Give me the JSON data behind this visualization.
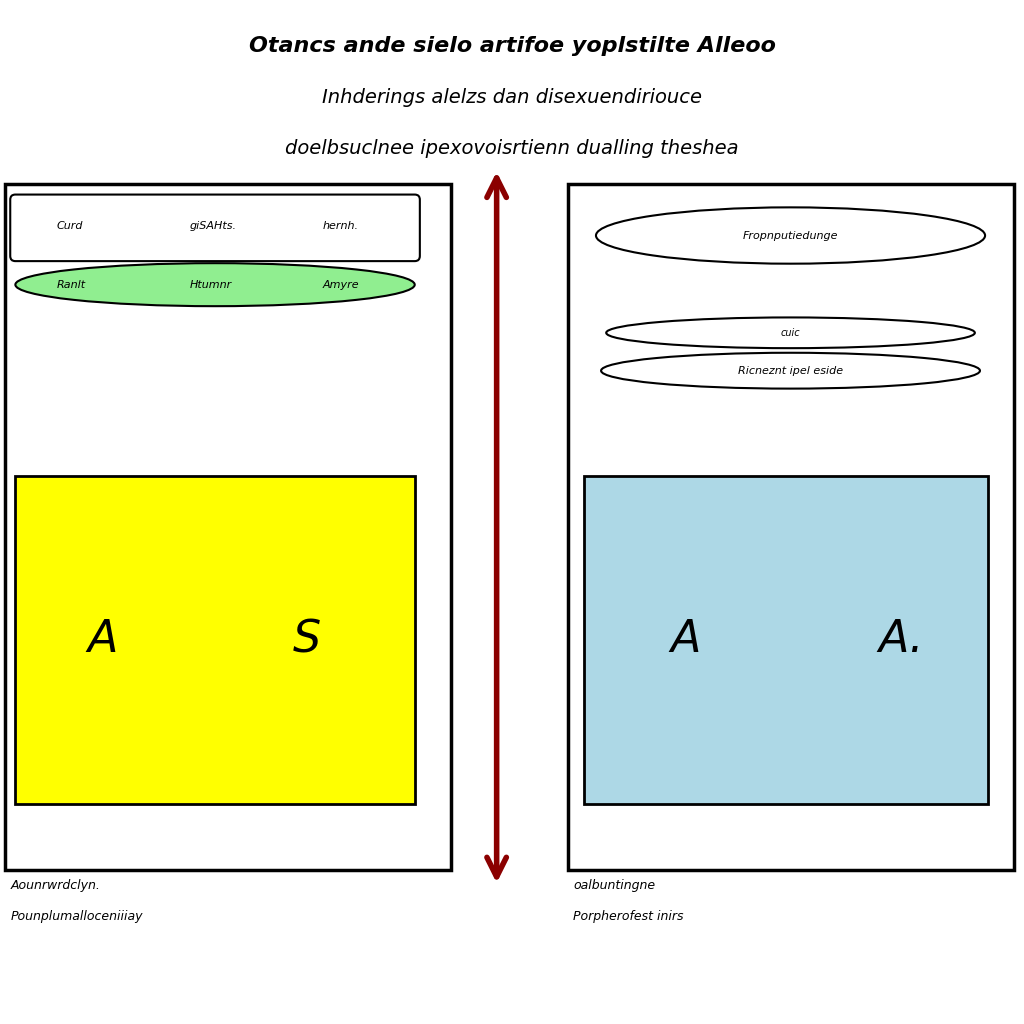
{
  "title_line1": "Otancs ande sielo artifoe yoplstilte Alleoo",
  "title_line2": "Inhderings alelzs dan disexuendiriouce",
  "title_line3": "doelbsuclnee ipexovoisrtienn dualling theshea",
  "bg_color": "#ffffff",
  "left_fill_color": "#ffff00",
  "right_fill_color": "#add8e6",
  "arrow_color": "#8b0000",
  "left_table_header": [
    "Curd",
    "giSAHts.",
    "hernh."
  ],
  "left_table_row": [
    "Ranlt",
    "Htumnr",
    "Amyre"
  ],
  "left_table_row_color": "#90ee90",
  "right_oval1_text": "Fropnputiedunge",
  "right_oval2_text": "cuic",
  "right_oval3_text": "Ricneznt ipel eside",
  "left_label1": "Aounrwrdclyn.",
  "left_label2": "Pounplumalloceniiiay",
  "right_label1": "oalbuntingne",
  "right_label2": "Porpherofest inirs",
  "left_box_A": "A",
  "left_box_S": "S",
  "right_box_A1": "A",
  "right_box_A2": "A."
}
